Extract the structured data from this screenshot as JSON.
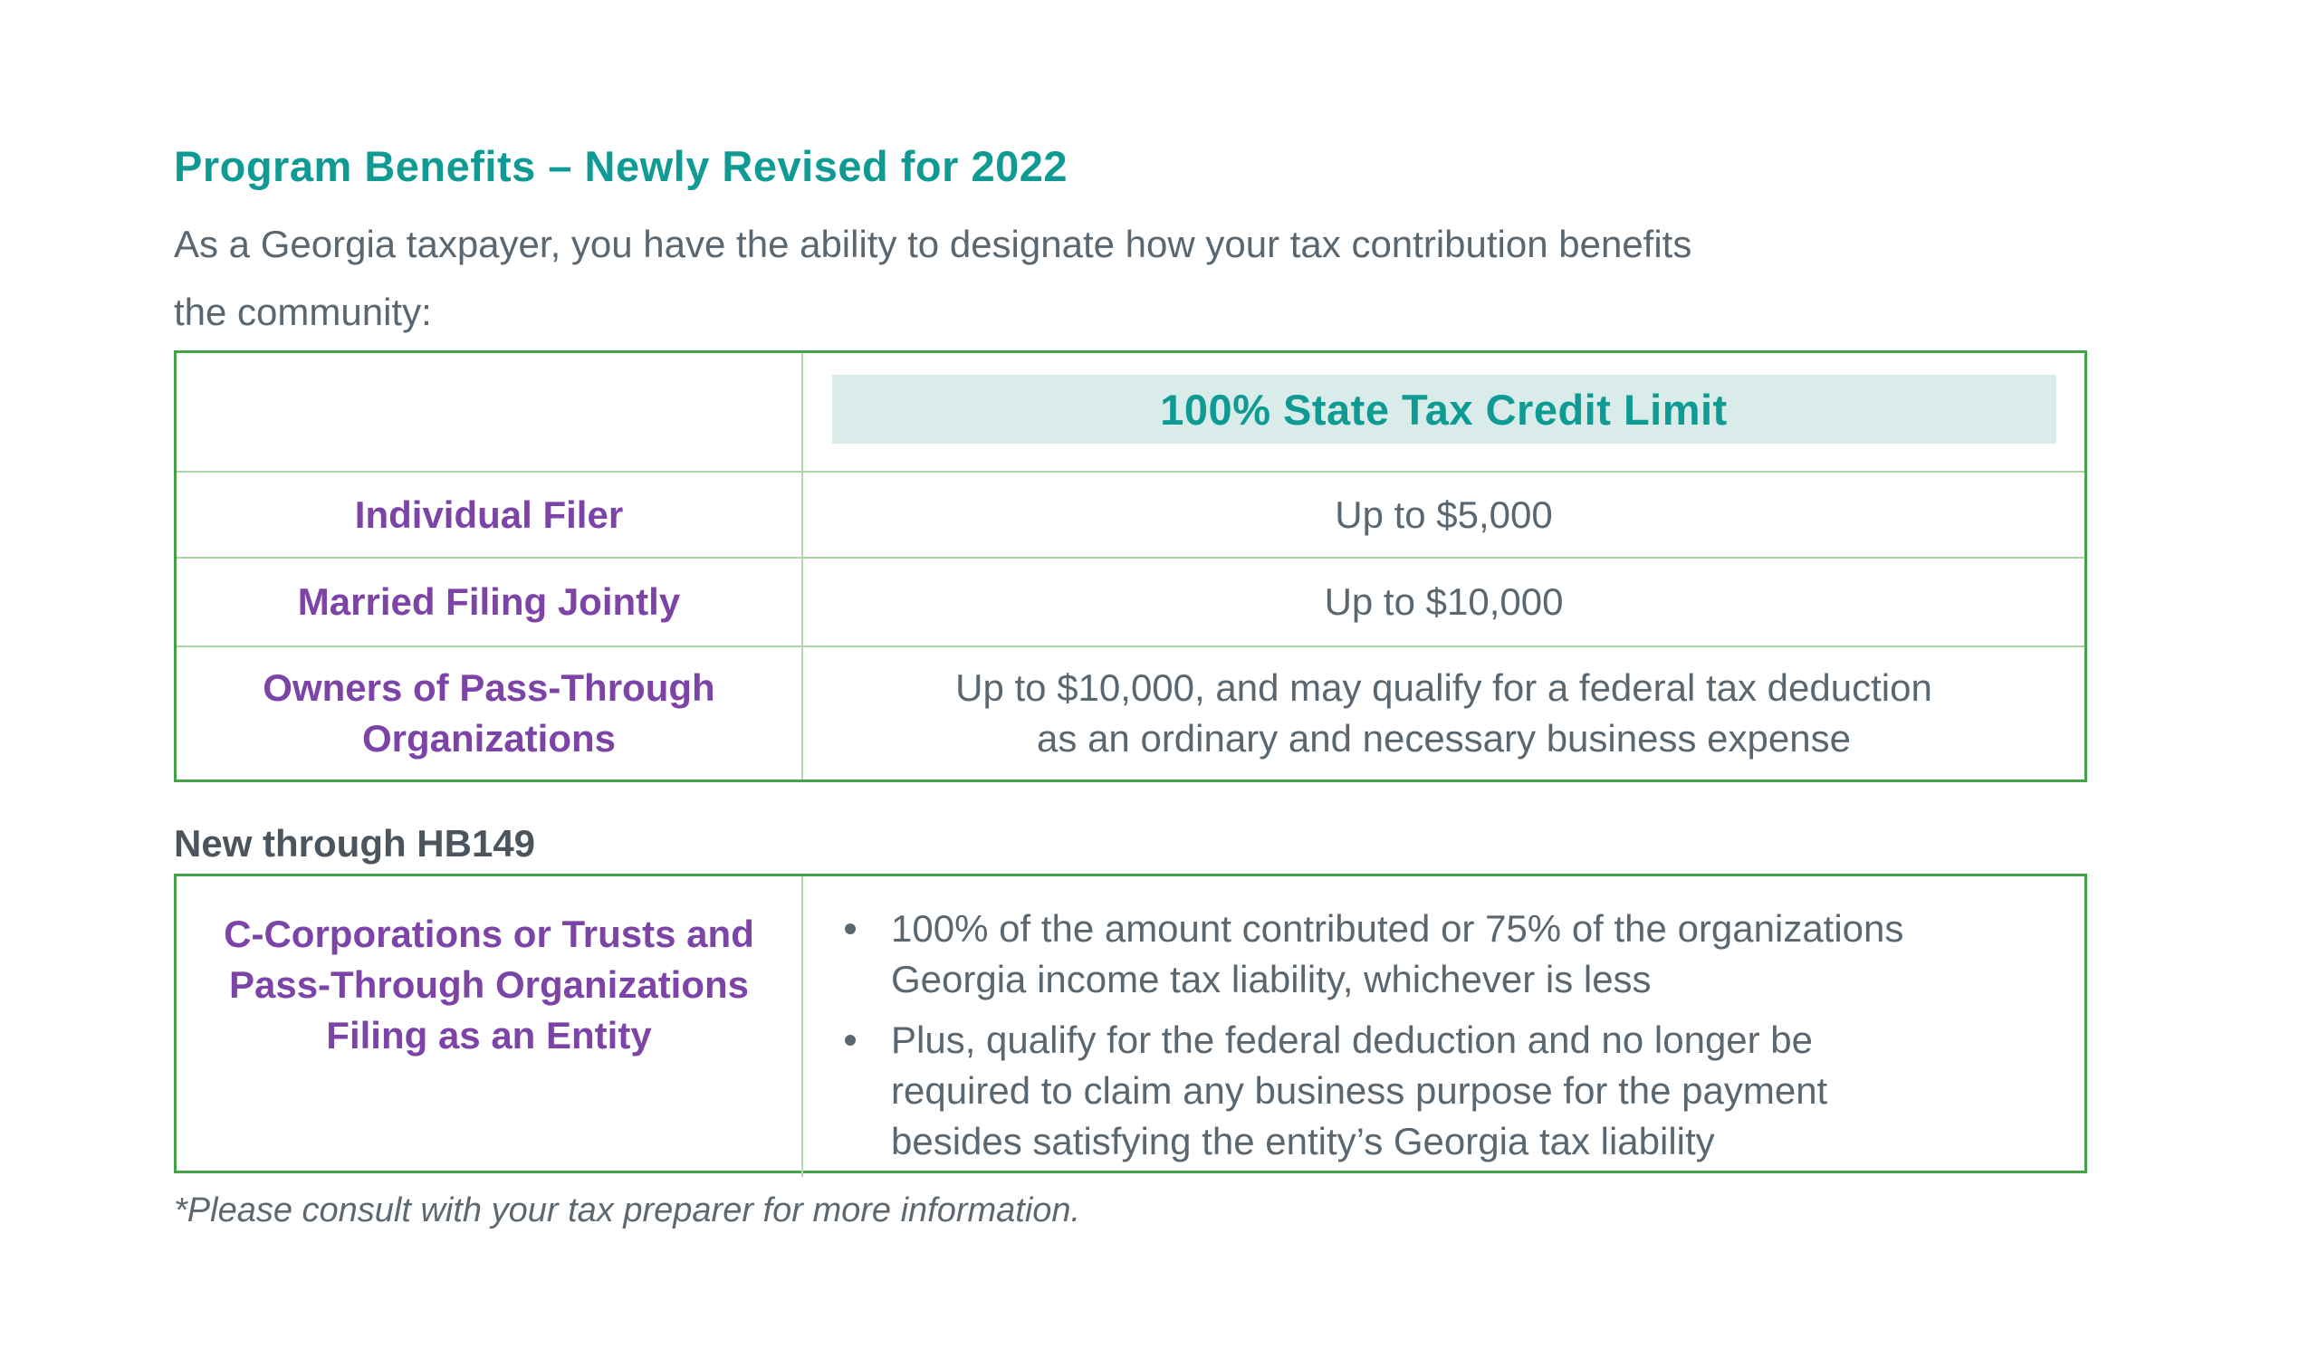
{
  "page": {
    "title": "Program Benefits – Newly Revised for 2022",
    "intro_lines": [
      "As a Georgia taxpayer, you have the ability to designate how your tax contribution benefits",
      "the community:"
    ]
  },
  "benefits_table": {
    "header": "100% State Tax Credit Limit",
    "rows": [
      {
        "label_lines": [
          "Individual Filer"
        ],
        "value_lines": [
          "Up to $5,000"
        ]
      },
      {
        "label_lines": [
          "Married Filing Jointly"
        ],
        "value_lines": [
          "Up to $10,000"
        ]
      },
      {
        "label_lines": [
          "Owners of Pass-Through",
          "Organizations"
        ],
        "value_lines": [
          "Up to $10,000, and may qualify for a federal tax deduction",
          "as an ordinary and necessary business expense"
        ]
      }
    ]
  },
  "hb149_section": {
    "heading": "New through HB149",
    "entity_lines": [
      "C-Corporations or Trusts and",
      "Pass-Through Organizations",
      "Filing as an Entity"
    ],
    "bullets": [
      {
        "lines": [
          "100% of the amount contributed or 75% of the organizations",
          "Georgia income tax liability, whichever is less"
        ]
      },
      {
        "lines": [
          "Plus, qualify for the federal deduction and no longer be",
          "required to claim any business purpose for the payment",
          "besides satisfying the entity’s Georgia tax liability"
        ]
      }
    ]
  },
  "footnote": "*Please consult with your tax preparer for more information.",
  "colors": {
    "accent_teal": "#0f9b94",
    "header_fill_teal": "#d9ecea",
    "accent_purple": "#7b44a6",
    "body_text_gray": "#5b6770",
    "section_heading_gray": "#4c555d",
    "table_border_green": "#44a34a",
    "table_inner_line_green": "#a9d4a4"
  }
}
